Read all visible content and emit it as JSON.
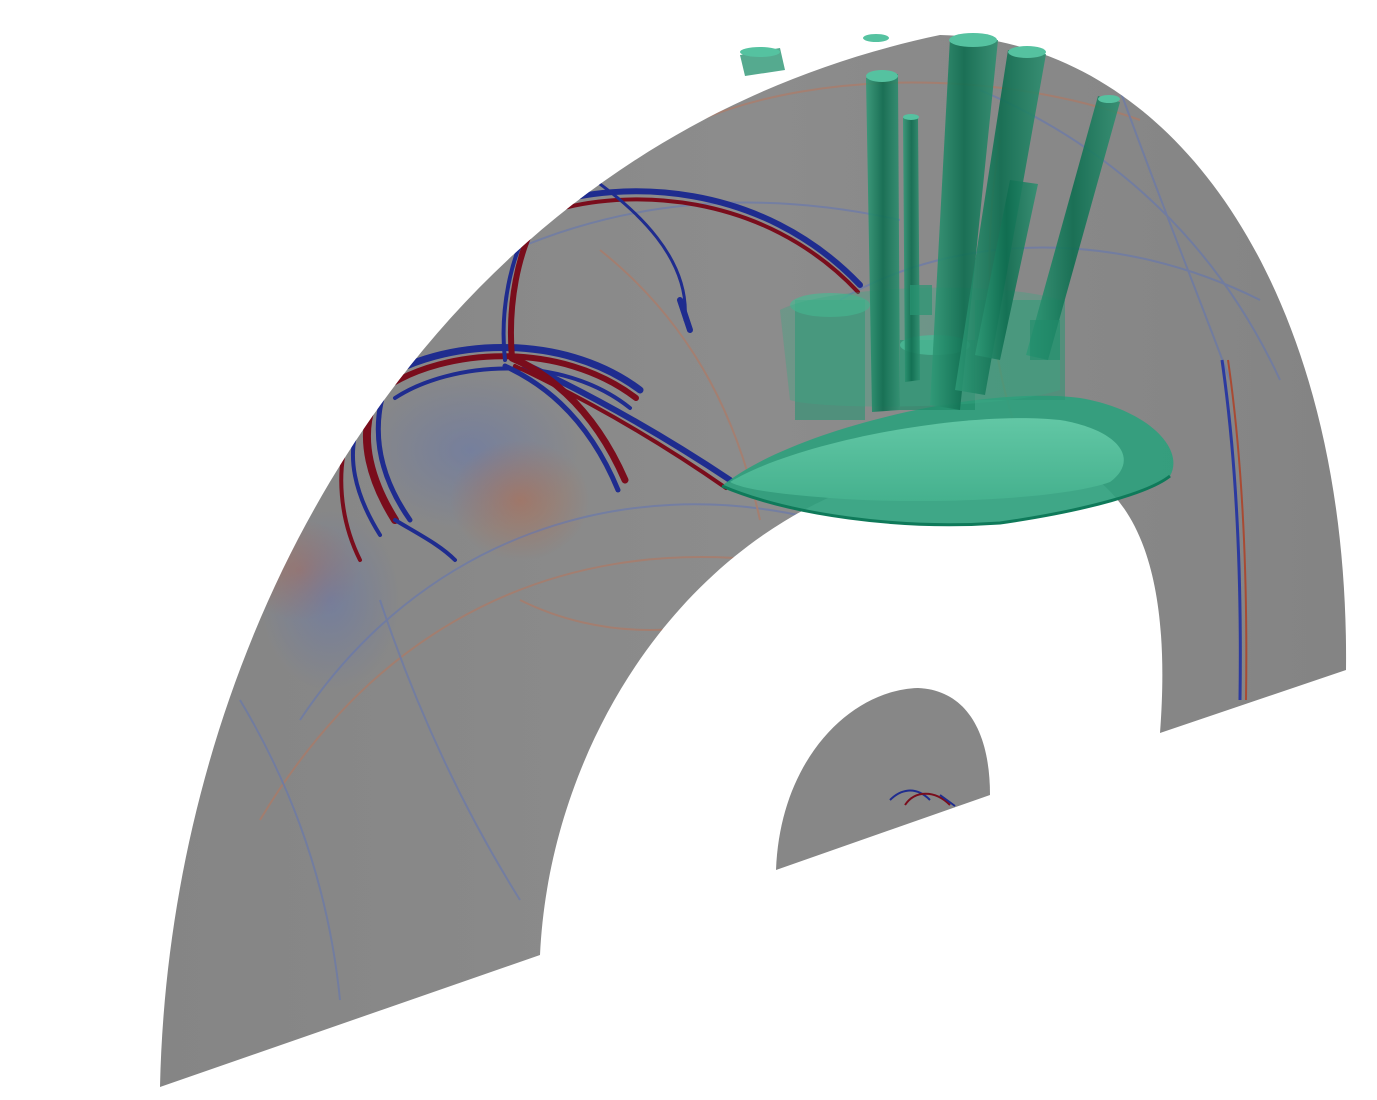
{
  "scene": {
    "background_color": "#ffffff",
    "colors": {
      "slice_base": "#878787",
      "wave_positive": "#7a0d1c",
      "wave_negative": "#1f2c8f",
      "wave_faint_positive": "#b9765c",
      "wave_faint_negative": "#6275b5",
      "inclusion_fill": "#1f9a78",
      "inclusion_dark": "#0d6a4f",
      "inclusion_light": "#55c2a0"
    },
    "objects": [
      "outer-spherical-shell-slice",
      "inner-core-slice",
      "seismic-wavefronts",
      "green-crust-cap",
      "green-plume-columns"
    ]
  }
}
